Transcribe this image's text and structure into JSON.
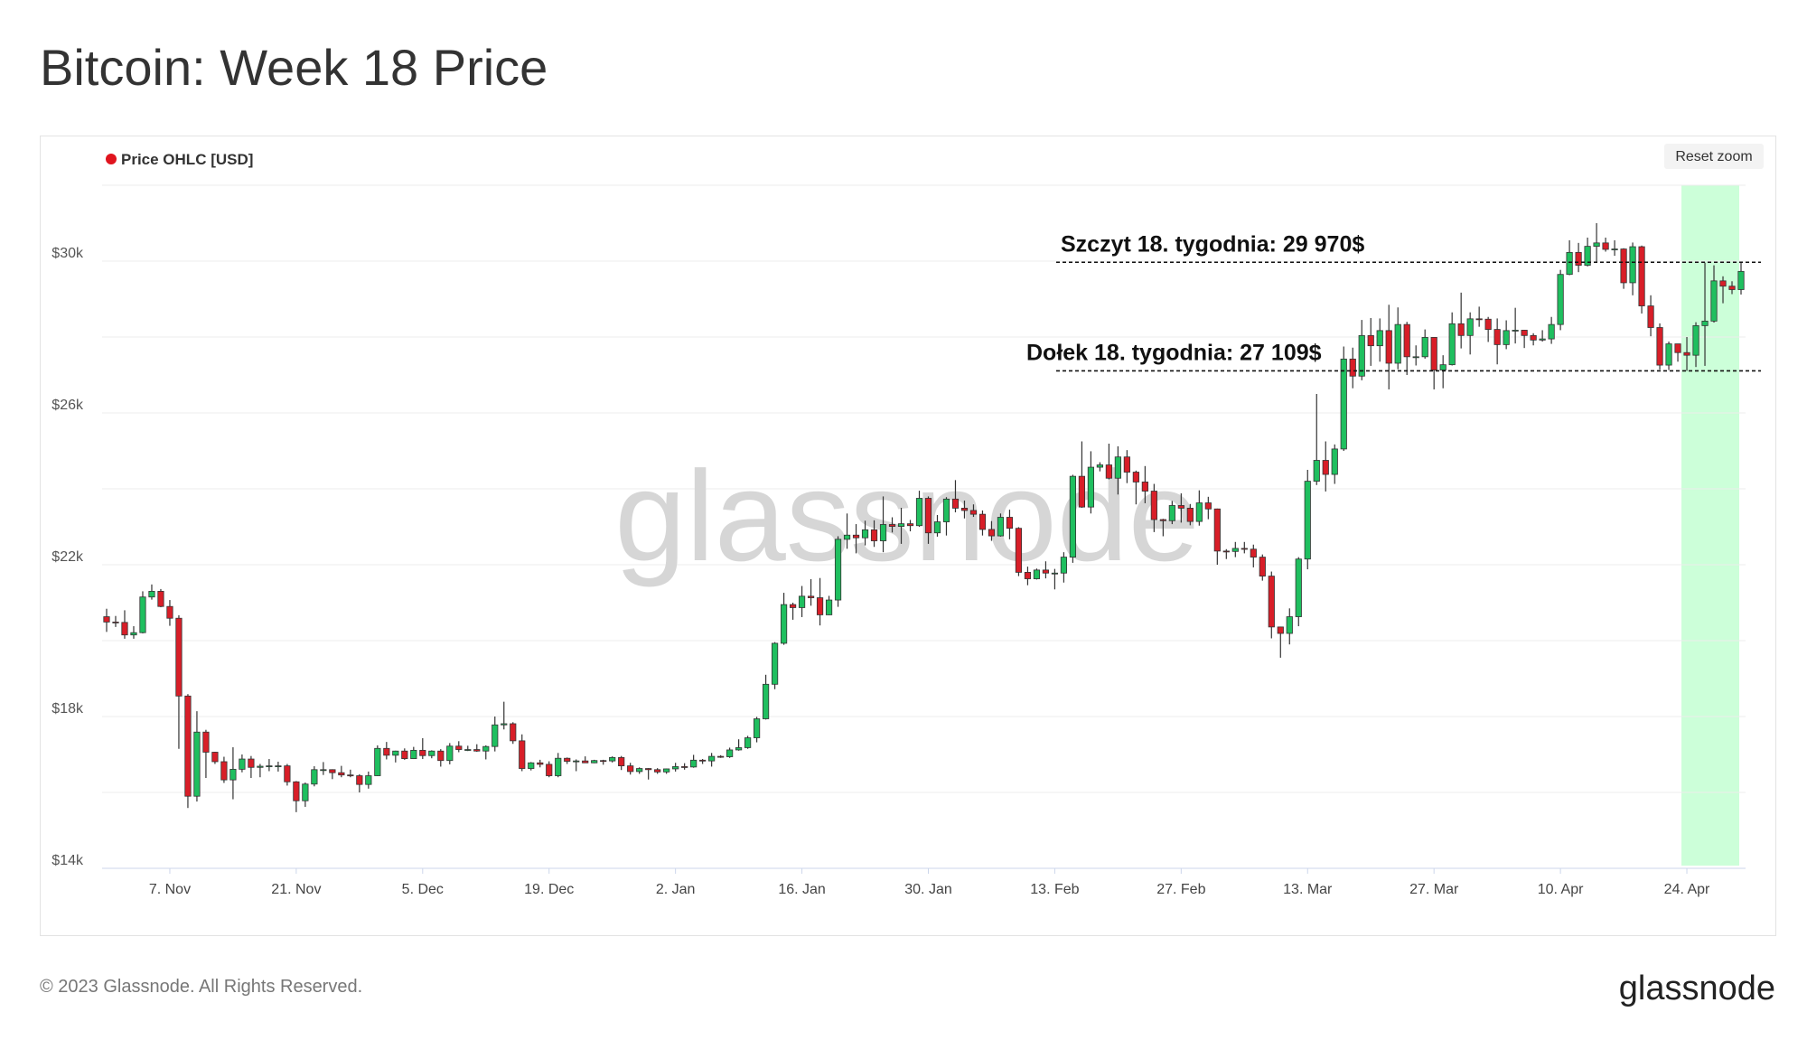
{
  "chart_data": {
    "type": "candlestick",
    "title": "Bitcoin: Week 18 Price",
    "categories": [
      null,
      null,
      null,
      null,
      null,
      null,
      null,
      "7. Nov",
      null,
      null,
      null,
      null,
      null,
      null,
      null,
      null,
      null,
      null,
      null,
      null,
      null,
      "21. Nov",
      null,
      null,
      null,
      null,
      null,
      null,
      null,
      null,
      null,
      null,
      null,
      null,
      null,
      "5. Dec",
      null,
      null,
      null,
      null,
      null,
      null,
      null,
      null,
      null,
      null,
      null,
      null,
      null,
      "19. Dec",
      null,
      null,
      null,
      null,
      null,
      null,
      null,
      null,
      null,
      null,
      null,
      null,
      null,
      "2. Jan",
      null,
      null,
      null,
      null,
      null,
      null,
      null,
      null,
      null,
      null,
      null,
      null,
      null,
      "16. Jan",
      null,
      null,
      null,
      null,
      null,
      null,
      null,
      null,
      null,
      null,
      null,
      null,
      null,
      "30. Jan",
      null,
      null,
      null,
      null,
      null,
      null,
      null,
      null,
      null,
      null,
      null,
      null,
      null,
      "13. Feb",
      null,
      null,
      null,
      null,
      null,
      null,
      null,
      null,
      null,
      null,
      null,
      null,
      null,
      "27. Feb",
      null,
      null,
      null,
      null,
      null,
      null,
      null,
      null,
      null,
      null,
      null,
      null,
      null,
      "13. Mar",
      null,
      null,
      null,
      null,
      null,
      null,
      null,
      null,
      null,
      null,
      null,
      null,
      null,
      "27. Mar",
      null,
      null,
      null,
      null,
      null,
      null,
      null,
      null,
      null,
      null,
      null,
      null,
      null,
      "10. Apr",
      null,
      null,
      null,
      null,
      null,
      null,
      null,
      null,
      null,
      null,
      null,
      null,
      null,
      "24. Apr",
      null,
      null,
      null,
      null,
      null,
      null
    ],
    "series": [
      {
        "name": "Price OHLC [USD]",
        "color": "#e0141e",
        "up_color": "#1fbf5f",
        "down_color": "#d81e28",
        "open": [
          20630,
          20490,
          20480,
          20150,
          20210,
          21150,
          21300,
          20900,
          20590,
          18540,
          15900,
          17590,
          17060,
          16810,
          16330,
          16610,
          16880,
          16660,
          16690,
          16700,
          16700,
          16280,
          15780,
          16220,
          16600,
          16600,
          16520,
          16460,
          16440,
          16210,
          16440,
          17160,
          16980,
          17090,
          16890,
          17110,
          16970,
          17090,
          16840,
          17220,
          17130,
          17130,
          17090,
          17210,
          17780,
          17810,
          17360,
          16630,
          16780,
          16740,
          16440,
          16900,
          16820,
          16830,
          16780,
          16840,
          16830,
          16920,
          16700,
          16550,
          16630,
          16600,
          16540,
          16620,
          16680,
          16670,
          16850,
          16830,
          16950,
          16940,
          17120,
          17180,
          17440,
          17940,
          18850,
          19930,
          20950,
          20870,
          21170,
          21130,
          20680,
          21070,
          22670,
          22780,
          22710,
          22920,
          22630,
          23060,
          23010,
          23080,
          23030,
          23750,
          22840,
          23130,
          23730,
          23490,
          23430,
          23330,
          22930,
          22760,
          23250,
          22960,
          21800,
          21630,
          21860,
          21780,
          21780,
          22200,
          24330,
          23520,
          24570,
          24630,
          24280,
          24840,
          24440,
          24180,
          23940,
          23190,
          23160,
          23560,
          23490,
          23140,
          23630,
          23470,
          22360,
          22350,
          22430,
          22410,
          22200,
          21700,
          20360,
          20190,
          20630,
          22150,
          24200,
          24750,
          24380,
          25050,
          27420,
          26970,
          28040,
          27770,
          28170,
          27310,
          28330,
          27480,
          27480,
          27990,
          27130,
          27270,
          28350,
          28040,
          28480,
          28470,
          28200,
          27800,
          28170,
          28180,
          28040,
          27920,
          27950,
          28330,
          29650,
          30230,
          29890,
          30390,
          30480,
          30310,
          30320,
          29430,
          30380,
          28820,
          28250,
          27260,
          27820,
          27590,
          27520,
          28300,
          28420,
          29480,
          29340,
          29250
        ],
        "high": [
          20840,
          20650,
          20800,
          20380,
          21300,
          21480,
          21360,
          21070,
          20670,
          18590,
          18140,
          17650,
          17070,
          16940,
          17190,
          17000,
          16960,
          16750,
          16880,
          16810,
          16750,
          16300,
          16260,
          16690,
          16800,
          16610,
          16700,
          16600,
          16480,
          16550,
          17240,
          17330,
          17100,
          17160,
          17200,
          17430,
          17110,
          17140,
          17300,
          17350,
          17230,
          17270,
          17240,
          18000,
          18390,
          17850,
          17530,
          16800,
          16860,
          16820,
          17040,
          16920,
          16870,
          16950,
          16860,
          16860,
          16950,
          16960,
          16780,
          16660,
          16640,
          16640,
          16630,
          16780,
          16770,
          16990,
          16880,
          17040,
          16980,
          17180,
          17400,
          17490,
          17990,
          19100,
          19960,
          21260,
          21000,
          21440,
          21620,
          21650,
          21180,
          22750,
          23350,
          23070,
          23160,
          23170,
          23800,
          23250,
          23500,
          23180,
          23950,
          23800,
          23310,
          23780,
          24230,
          23690,
          23590,
          23430,
          23150,
          23350,
          23450,
          22990,
          21950,
          21900,
          22090,
          21890,
          22330,
          24370,
          25250,
          24990,
          24700,
          25190,
          25120,
          25020,
          24480,
          24600,
          24130,
          23210,
          23680,
          23880,
          23600,
          23960,
          23790,
          23480,
          22410,
          22600,
          22600,
          22530,
          22270,
          21820,
          20370,
          20850,
          22200,
          24500,
          26500,
          25250,
          25170,
          27750,
          27720,
          28450,
          28500,
          28490,
          28850,
          28780,
          28400,
          27780,
          28200,
          28000,
          27520,
          28650,
          29170,
          28650,
          28800,
          28530,
          28490,
          28440,
          28770,
          28190,
          28100,
          28180,
          28530,
          29770,
          30550,
          30480,
          30620,
          31000,
          30620,
          30550,
          30340,
          30490,
          30410,
          29100,
          28360,
          27880,
          27820,
          28000,
          28390,
          29960,
          29890,
          29600,
          29470,
          29970
        ],
        "low": [
          20230,
          20360,
          20050,
          20050,
          20190,
          21080,
          20880,
          20390,
          17150,
          15590,
          15760,
          16380,
          16750,
          16250,
          15820,
          16530,
          16380,
          16400,
          16560,
          16550,
          16180,
          15480,
          15620,
          16160,
          16460,
          16350,
          16400,
          16400,
          16000,
          16100,
          16430,
          16870,
          16790,
          16860,
          16880,
          16880,
          16900,
          16680,
          16740,
          17060,
          17090,
          17070,
          16870,
          17080,
          17660,
          17280,
          16560,
          16580,
          16660,
          16400,
          16400,
          16750,
          16560,
          16780,
          16770,
          16730,
          16790,
          16590,
          16470,
          16490,
          16340,
          16490,
          16490,
          16550,
          16600,
          16650,
          16750,
          16680,
          16910,
          16910,
          17100,
          17150,
          17320,
          17920,
          18720,
          19890,
          20550,
          20620,
          20920,
          20400,
          20670,
          20890,
          22420,
          22300,
          22510,
          22470,
          22330,
          22850,
          22550,
          22880,
          23000,
          22550,
          22740,
          22770,
          23380,
          23220,
          23260,
          22770,
          22630,
          22740,
          22670,
          21700,
          21460,
          21610,
          21640,
          21350,
          21530,
          22050,
          23500,
          23350,
          24460,
          24250,
          23850,
          24150,
          23590,
          23620,
          22860,
          22750,
          23070,
          23110,
          23040,
          23030,
          23200,
          22000,
          22150,
          22200,
          22300,
          21930,
          21580,
          20060,
          19550,
          19900,
          20380,
          21880,
          24100,
          23930,
          24130,
          25000,
          26650,
          26860,
          27240,
          27350,
          26620,
          27150,
          27000,
          27250,
          27430,
          26620,
          26650,
          27250,
          27700,
          27540,
          28270,
          27870,
          27280,
          27680,
          27830,
          27710,
          27780,
          27880,
          27820,
          28180,
          29630,
          29710,
          29860,
          29950,
          30250,
          30140,
          29270,
          29100,
          28620,
          28020,
          27140,
          27130,
          27350,
          27109,
          27210,
          27240,
          28380,
          28890,
          29130,
          29120
        ],
        "close": [
          20490,
          20480,
          20150,
          20210,
          21150,
          21300,
          20900,
          20590,
          18540,
          15900,
          17590,
          17060,
          16810,
          16330,
          16610,
          16880,
          16660,
          16690,
          16700,
          16700,
          16280,
          15780,
          16220,
          16600,
          16600,
          16520,
          16460,
          16440,
          16210,
          16440,
          17160,
          16980,
          17090,
          16890,
          17110,
          16970,
          17090,
          16840,
          17220,
          17130,
          17130,
          17090,
          17210,
          17780,
          17810,
          17360,
          16630,
          16780,
          16740,
          16440,
          16900,
          16820,
          16830,
          16780,
          16840,
          16830,
          16920,
          16700,
          16550,
          16630,
          16600,
          16540,
          16620,
          16680,
          16670,
          16850,
          16830,
          16950,
          16940,
          17120,
          17180,
          17440,
          17940,
          18850,
          19930,
          20950,
          20870,
          21170,
          21130,
          20680,
          21070,
          22670,
          22780,
          22710,
          22920,
          22630,
          23060,
          23010,
          23080,
          23030,
          23750,
          22840,
          23130,
          23730,
          23490,
          23430,
          23330,
          22930,
          22760,
          23250,
          22960,
          21800,
          21630,
          21860,
          21780,
          21780,
          22200,
          24330,
          23520,
          24570,
          24630,
          24280,
          24840,
          24440,
          24180,
          23940,
          23190,
          23160,
          23560,
          23490,
          23140,
          23630,
          23470,
          22360,
          22350,
          22430,
          22410,
          22200,
          21700,
          20360,
          20190,
          20630,
          22150,
          24200,
          24750,
          24380,
          25050,
          27420,
          26970,
          28040,
          27770,
          28170,
          27310,
          28330,
          27480,
          27480,
          27990,
          27130,
          27270,
          28350,
          28040,
          28480,
          28470,
          28200,
          27800,
          28170,
          28180,
          28040,
          27920,
          27950,
          28330,
          29650,
          30230,
          29890,
          30390,
          30480,
          30310,
          30320,
          29430,
          30380,
          28820,
          28250,
          27260,
          27820,
          27590,
          27520,
          28300,
          28420,
          29480,
          29340,
          29250,
          29730
        ]
      }
    ],
    "ylim": [
      14000,
      32000
    ],
    "yticks": [
      {
        "value": 14000,
        "label": "$14k"
      },
      {
        "value": 18000,
        "label": "$18k"
      },
      {
        "value": 22000,
        "label": "$22k"
      },
      {
        "value": 26000,
        "label": "$26k"
      },
      {
        "value": 30000,
        "label": "$30k"
      }
    ],
    "y_gridlines": [
      14000,
      16000,
      18000,
      20000,
      22000,
      24000,
      26000,
      28000,
      30000,
      32000
    ],
    "grid": true,
    "highlight_color": "#ccffd9",
    "annotations": [
      {
        "label": "Szczyt 18. tygodnia: 29 970$",
        "value": 29970
      },
      {
        "label": "Dołek 18. tygodnia: 27 109$",
        "value": 27109
      }
    ]
  },
  "reset_zoom": "Reset zoom",
  "watermark": "glassnode",
  "footer": "© 2023 Glassnode. All Rights Reserved.",
  "logo": "glassnode"
}
